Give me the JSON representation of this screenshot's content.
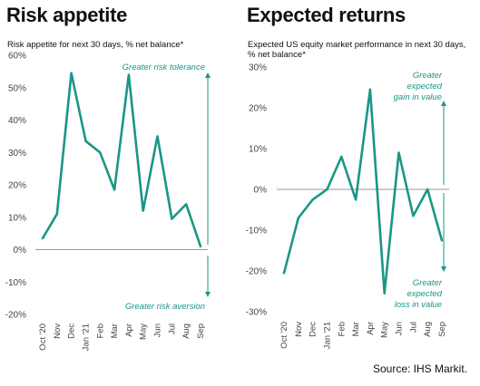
{
  "chart_data": [
    {
      "type": "line",
      "title": "Risk appetite",
      "subtitle": "Risk appetite for next 30 days, % net balance*",
      "categories": [
        "Oct '20",
        "Nov",
        "Dec",
        "Jan '21",
        "Feb",
        "Mar",
        "Apr",
        "May",
        "Jun",
        "Jul",
        "Aug",
        "Sep"
      ],
      "series": [
        {
          "values": [
            3.5,
            11,
            54.5,
            33.5,
            30,
            18.5,
            54,
            12,
            35,
            9.5,
            14,
            1
          ]
        }
      ],
      "ylim": [
        -20,
        60
      ],
      "yticks": [
        -20,
        -10,
        0,
        10,
        20,
        30,
        40,
        50,
        60
      ],
      "ytick_labels": [
        "-20%",
        "-10%",
        "0%",
        "10%",
        "20%",
        "30%",
        "40%",
        "50%",
        "60%"
      ],
      "annotations": {
        "upper": "Greater risk tolerance",
        "lower": "Greater risk aversion"
      },
      "grid": false,
      "line_color": "#1a9686",
      "accent_color": "#1a9686"
    },
    {
      "type": "line",
      "title": "Expected returns",
      "subtitle": "Expected US equity market performance in next 30 days, % net balance*",
      "categories": [
        "Oct '20",
        "Nov",
        "Dec",
        "Jan '21",
        "Feb",
        "Mar",
        "Apr",
        "May",
        "Jun",
        "Jul",
        "Aug",
        "Sep"
      ],
      "series": [
        {
          "values": [
            -20.5,
            -7,
            -2.5,
            0,
            8,
            -2.5,
            24.5,
            -25.5,
            9,
            -6.5,
            0,
            -12.5
          ]
        }
      ],
      "ylim": [
        -30,
        30
      ],
      "yticks": [
        -30,
        -20,
        -10,
        0,
        10,
        20,
        30
      ],
      "ytick_labels": [
        "-30%",
        "-20%",
        "-10%",
        "0%",
        "10%",
        "20%",
        "30%"
      ],
      "annotations": {
        "upper": "Greater expected gain in value",
        "lower": "Greater expected loss in value"
      },
      "grid": false,
      "line_color": "#1a9686",
      "accent_color": "#1a9686"
    }
  ],
  "source": "Source: IHS Markit."
}
